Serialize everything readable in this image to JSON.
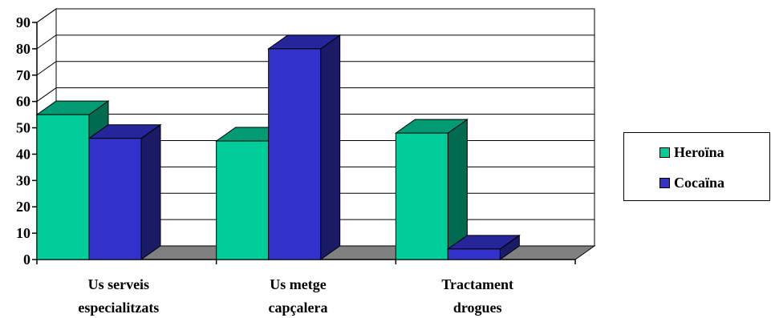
{
  "chart_data": {
    "type": "bar",
    "categories": [
      [
        "Us serveis",
        "especialitzats"
      ],
      [
        "Us metge",
        "capçalera"
      ],
      [
        "Tractament",
        "drogues"
      ]
    ],
    "series": [
      {
        "name": "Heroïna",
        "values": [
          55,
          45,
          48
        ],
        "color": "#00cc99",
        "side_color": "#006b50",
        "top_color": "#009a73"
      },
      {
        "name": "Cocaïna",
        "values": [
          46,
          80,
          4
        ],
        "color": "#3333cc",
        "side_color": "#1a1a66",
        "top_color": "#26269a"
      }
    ],
    "ylim": [
      0,
      90
    ],
    "yticks": [
      0,
      10,
      20,
      30,
      40,
      50,
      60,
      70,
      80,
      90
    ],
    "grid": true,
    "three_d": true,
    "floor_color": "#808080",
    "legend_position": "right"
  }
}
